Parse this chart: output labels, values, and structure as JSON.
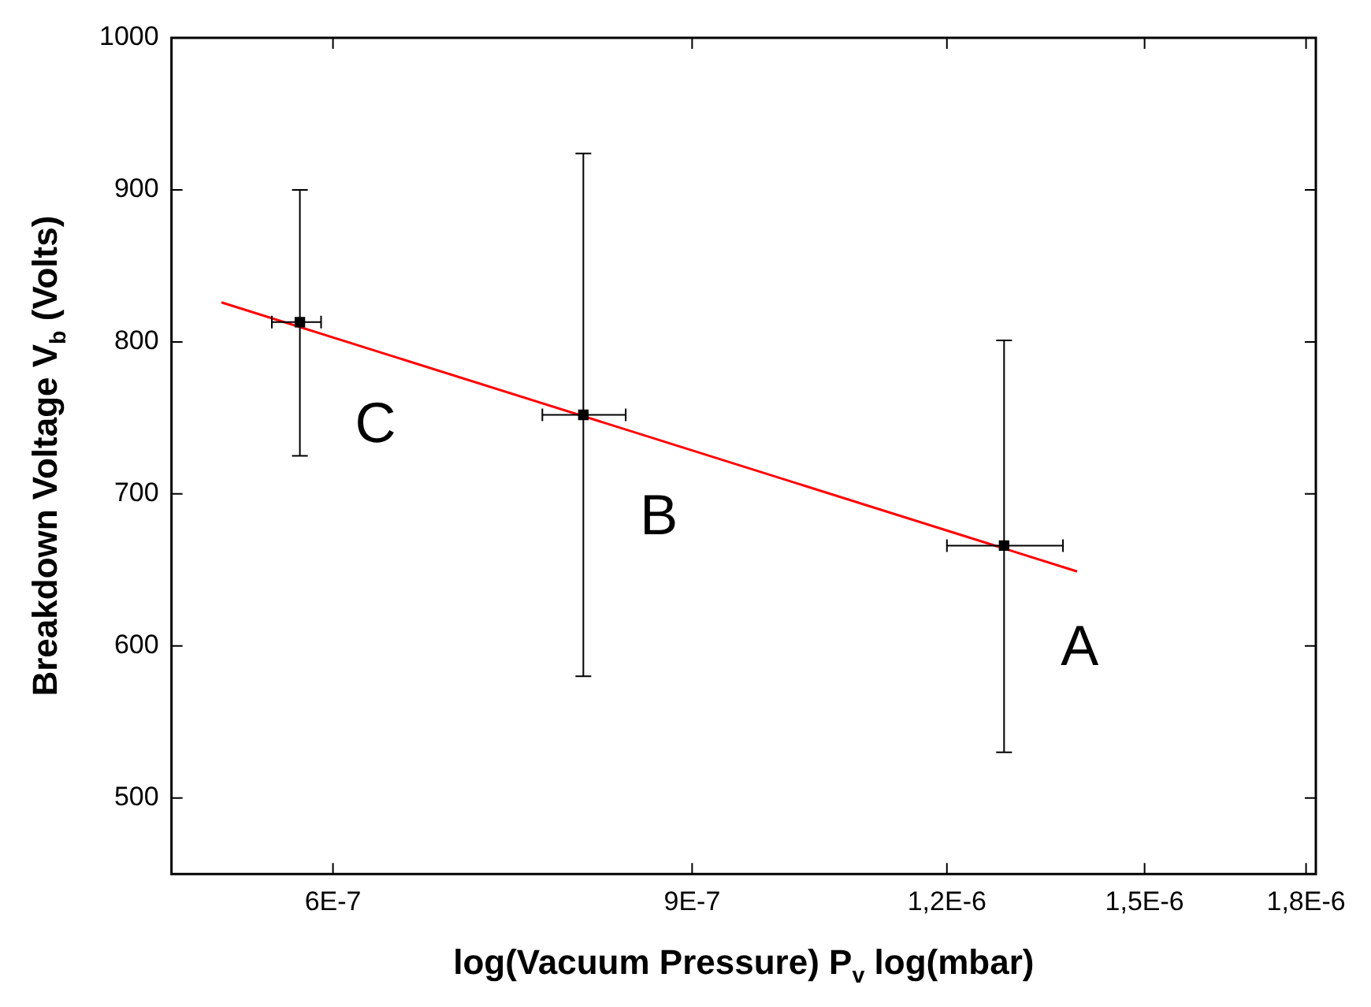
{
  "chart_data": {
    "type": "scatter",
    "xlabel": "log(Vacuum Pressure) P$_{v}$ log(mbar)",
    "ylabel": "Breakdown Voltage V$_{b}$ (Volts)",
    "log": "x",
    "grid": false,
    "legend": false,
    "marker": "square",
    "xlim": [
      5e-07,
      1.82e-06
    ],
    "xticks": [
      {
        "value": 6e-07,
        "label": "6E-7"
      },
      {
        "value": 9e-07,
        "label": "9E-7"
      },
      {
        "value": 1.2e-06,
        "label": "1,2E-6"
      },
      {
        "value": 1.5e-06,
        "label": "1,5E-6"
      },
      {
        "value": 1.8e-06,
        "label": "1,8E-6"
      }
    ],
    "ylim": [
      450,
      1000
    ],
    "yticks": [
      500,
      600,
      700,
      800,
      900,
      1000
    ],
    "series": [
      {
        "color": "#000000",
        "x": [
          5.78e-07,
          7.96e-07,
          1.28e-06
        ],
        "values": [
          813,
          752,
          666
        ],
        "errors": [
          [
            725,
            900
          ],
          [
            580,
            924
          ],
          [
            530,
            801
          ]
        ],
        "xerrors": [
          [
            5.6e-07,
            5.92e-07
          ],
          [
            7.6e-07,
            8.35e-07
          ],
          [
            1.2e-06,
            1.368e-06
          ]
        ]
      },
      {
        "type": "line",
        "color": "#ff0000",
        "marker": "none",
        "x": [
          5.29e-07,
          1.39e-06
        ],
        "values": [
          826,
          649
        ]
      }
    ],
    "annotations": [
      "C",
      "B",
      "A"
    ]
  }
}
